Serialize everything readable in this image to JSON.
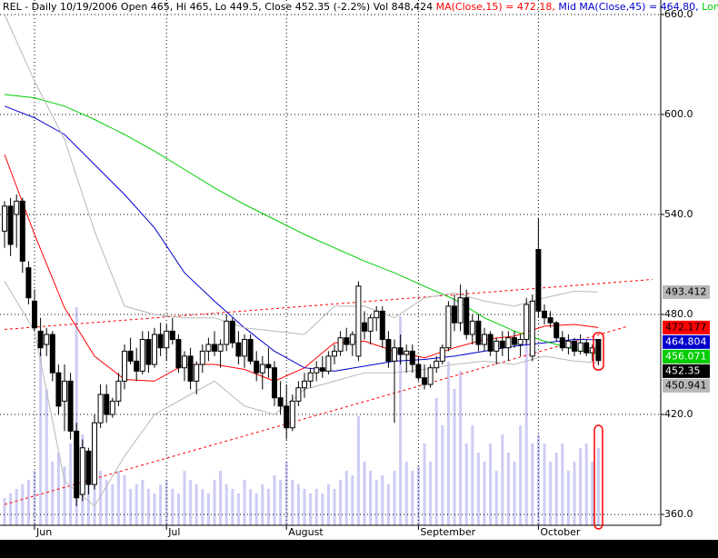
{
  "chart_data": {
    "type": "candlestick",
    "title": "REL - Daily 10/19/2006 Open 465, Hi 465, Lo 449.5, Close 452.35 (-2.2%) Vol 848,424",
    "ma_label": "MA(Close,15) = 472.18,",
    "mid_label": "Mid MA(Close,45) = 464.80,",
    "long_label": "Long",
    "ylim": [
      353.5,
      668.7
    ],
    "yticks": [
      {
        "value": 360,
        "label": "360.0"
      },
      {
        "value": 420,
        "label": "420.0"
      },
      {
        "value": 480,
        "label": "480.0"
      },
      {
        "value": 540,
        "label": "540.0"
      },
      {
        "value": 600,
        "label": "600.0"
      },
      {
        "value": 660,
        "label": "660.0"
      }
    ],
    "xticks": [
      {
        "value": 5,
        "label": "Jun"
      },
      {
        "value": 27,
        "label": "Jul"
      },
      {
        "value": 47,
        "label": "August"
      },
      {
        "value": 69,
        "label": "September"
      },
      {
        "value": 89,
        "label": "October"
      }
    ],
    "grid": true,
    "open": [
      530,
      545,
      540,
      548,
      508,
      488,
      470,
      462,
      468,
      445,
      428,
      440,
      410,
      372,
      398,
      378,
      415,
      432,
      420,
      428,
      440,
      458,
      452,
      446,
      465,
      450,
      468,
      460,
      470,
      465,
      448,
      455,
      440,
      450,
      458,
      462,
      458,
      462,
      476,
      463,
      455,
      465,
      452,
      445,
      450,
      448,
      430,
      425,
      412,
      428,
      436,
      440,
      445,
      448,
      446,
      455,
      458,
      466,
      462,
      455,
      475,
      470,
      478,
      482,
      465,
      452,
      460,
      456,
      458,
      450,
      442,
      438,
      448,
      452,
      460,
      485,
      475,
      490,
      468,
      476,
      462,
      468,
      458,
      464,
      460,
      466,
      462,
      465,
      455,
      519,
      482,
      478,
      475,
      466,
      460,
      464,
      458,
      463,
      457,
      465
    ],
    "high": [
      548,
      550,
      552,
      550,
      512,
      495,
      478,
      472,
      470,
      450,
      450,
      445,
      415,
      405,
      400,
      420,
      438,
      438,
      430,
      445,
      462,
      466,
      460,
      470,
      470,
      472,
      475,
      474,
      478,
      468,
      458,
      460,
      452,
      462,
      466,
      470,
      465,
      480,
      478,
      470,
      468,
      468,
      458,
      455,
      460,
      452,
      440,
      438,
      432,
      440,
      445,
      448,
      452,
      455,
      458,
      462,
      470,
      472,
      470,
      500,
      482,
      480,
      485,
      485,
      470,
      465,
      468,
      462,
      462,
      455,
      450,
      450,
      455,
      462,
      488,
      492,
      498,
      495,
      480,
      480,
      472,
      470,
      466,
      470,
      470,
      470,
      468,
      490,
      492,
      538,
      486,
      482,
      476,
      470,
      468,
      466,
      468,
      465,
      462,
      465
    ],
    "low": [
      520,
      515,
      520,
      505,
      486,
      470,
      455,
      455,
      440,
      420,
      410,
      405,
      365,
      368,
      372,
      375,
      412,
      415,
      418,
      425,
      435,
      450,
      440,
      444,
      445,
      448,
      455,
      452,
      462,
      445,
      440,
      435,
      432,
      445,
      452,
      455,
      448,
      458,
      460,
      450,
      448,
      450,
      440,
      435,
      442,
      425,
      420,
      405,
      410,
      425,
      430,
      436,
      440,
      442,
      444,
      450,
      455,
      458,
      455,
      452,
      465,
      462,
      470,
      460,
      448,
      415,
      450,
      445,
      445,
      440,
      435,
      436,
      445,
      450,
      458,
      470,
      470,
      465,
      462,
      458,
      458,
      455,
      450,
      455,
      452,
      460,
      455,
      462,
      452,
      478,
      474,
      472,
      464,
      458,
      456,
      455,
      456,
      455,
      452,
      449.5
    ],
    "close": [
      545,
      522,
      548,
      512,
      490,
      472,
      460,
      468,
      445,
      425,
      440,
      410,
      370,
      400,
      378,
      415,
      432,
      420,
      428,
      440,
      458,
      452,
      446,
      465,
      450,
      468,
      460,
      470,
      465,
      448,
      455,
      440,
      450,
      458,
      462,
      458,
      462,
      476,
      463,
      455,
      465,
      452,
      445,
      450,
      448,
      430,
      425,
      412,
      428,
      436,
      440,
      445,
      448,
      446,
      455,
      458,
      466,
      462,
      468,
      497,
      470,
      478,
      482,
      465,
      452,
      460,
      456,
      458,
      450,
      442,
      438,
      448,
      452,
      460,
      485,
      475,
      490,
      468,
      476,
      462,
      468,
      458,
      464,
      460,
      466,
      462,
      465,
      486,
      488,
      482,
      478,
      475,
      466,
      460,
      464,
      458,
      463,
      457,
      460,
      452.35
    ],
    "volume": [
      300000,
      350000,
      400000,
      450000,
      500000,
      600000,
      1900000,
      1500000,
      700000,
      800000,
      650000,
      900000,
      2400000,
      1000000,
      700000,
      550000,
      600000,
      500000,
      450000,
      600000,
      550000,
      400000,
      450000,
      500000,
      400000,
      350000,
      450000,
      500000,
      400000,
      350000,
      600000,
      500000,
      450000,
      400000,
      350000,
      500000,
      600000,
      450000,
      400000,
      350000,
      500000,
      400000,
      350000,
      450000,
      400000,
      550000,
      500000,
      700000,
      500000,
      450000,
      400000,
      350000,
      400000,
      350000,
      450000,
      400000,
      500000,
      600000,
      550000,
      1200000,
      700000,
      600000,
      500000,
      550000,
      450000,
      600000,
      2300000,
      700000,
      600000,
      650000,
      900000,
      700000,
      1400000,
      1100000,
      1800000,
      1500000,
      1700000,
      900000,
      1100000,
      800000,
      700000,
      900000,
      600000,
      1000000,
      800000,
      700000,
      1100000,
      2200000,
      900000,
      1000000,
      900000,
      700000,
      800000,
      900000,
      600000,
      700000,
      850000,
      900000,
      700000,
      848424
    ],
    "volume_color": "#ccccf4",
    "series": [
      {
        "color": "#ff0000",
        "box_text": "#000000",
        "x": [
          0,
          5,
          10,
          15,
          20,
          25,
          30,
          35,
          40,
          45,
          50,
          55,
          60,
          65,
          70,
          75,
          80,
          85,
          90,
          95,
          99
        ],
        "values": [
          576,
          528,
          484,
          455,
          441,
          440,
          450,
          450,
          447,
          440,
          448,
          463,
          464,
          458,
          454,
          460,
          465,
          467,
          473,
          474,
          472.177
        ]
      },
      {
        "color": "#0000cc",
        "box_text": "#ffffff",
        "x": [
          0,
          5,
          10,
          15,
          20,
          25,
          30,
          35,
          40,
          45,
          50,
          55,
          60,
          65,
          70,
          75,
          80,
          85,
          90,
          95,
          99
        ],
        "values": [
          605,
          598,
          588,
          570,
          552,
          532,
          505,
          488,
          472,
          458,
          448,
          446,
          449,
          452,
          453,
          455,
          458,
          461,
          463,
          465,
          464.804
        ]
      },
      {
        "color": "#00cc00",
        "box_text": "#ffffff",
        "x": [
          0,
          5,
          10,
          15,
          20,
          25,
          30,
          35,
          40,
          45,
          50,
          55,
          60,
          65,
          70,
          75,
          80,
          85,
          90,
          95,
          99
        ],
        "values": [
          612,
          610,
          605,
          597,
          588,
          578,
          567,
          556,
          546,
          537,
          528,
          520,
          512,
          505,
          497,
          489,
          478,
          470,
          464,
          459,
          456.071
        ]
      },
      {
        "color": "#b8b8b8",
        "box_text": "#000000",
        "x": [
          0,
          5,
          10,
          15,
          20,
          25,
          30,
          35,
          40,
          45,
          50,
          55,
          60,
          65,
          70,
          75,
          80,
          85,
          90,
          95,
          99
        ],
        "values": [
          660,
          620,
          585,
          530,
          485,
          480,
          478,
          478,
          472,
          470,
          468,
          485,
          485,
          478,
          490,
          493,
          488,
          485,
          490,
          494,
          493.412
        ]
      },
      {
        "color": "#b8b8b8",
        "box_text": "#000000",
        "x": [
          0,
          5,
          10,
          15,
          20,
          25,
          30,
          35,
          40,
          45,
          50,
          55,
          60,
          65,
          70,
          75,
          80,
          85,
          90,
          95,
          99
        ],
        "values": [
          500,
          470,
          380,
          365,
          395,
          420,
          430,
          440,
          425,
          420,
          435,
          440,
          445,
          445,
          447,
          450,
          452,
          450,
          455,
          452,
          450.941
        ]
      }
    ],
    "trendlines": [
      {
        "color": "#ff0000",
        "x": [
          0,
          108
        ],
        "values": [
          471,
          501
        ]
      },
      {
        "color": "#ff0000",
        "x": [
          0,
          104
        ],
        "values": [
          366,
          473
        ]
      }
    ]
  }
}
